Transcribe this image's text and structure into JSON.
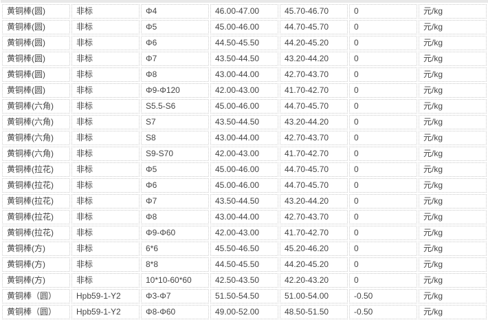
{
  "page": {
    "description": "brass rod price list table",
    "colors": {
      "background": "#ffffff",
      "border_dotted": "#c9c9c9",
      "header_strip": "#e9e9e9",
      "text": "#444444"
    }
  },
  "table": {
    "column_count": 7,
    "column_semantics": [
      "product-name",
      "standard",
      "specification",
      "price-range-1",
      "price-range-2",
      "change",
      "unit"
    ],
    "rows": [
      [
        "黄铜棒(圆)",
        "非标",
        "Φ4",
        "46.00-47.00",
        "45.70-46.70",
        "0",
        "元/kg"
      ],
      [
        "黄铜棒(圆)",
        "非标",
        "Φ5",
        "45.00-46.00",
        "44.70-45.70",
        "0",
        "元/kg"
      ],
      [
        "黄铜棒(圆)",
        "非标",
        "Φ6",
        "44.50-45.50",
        "44.20-45.20",
        "0",
        "元/kg"
      ],
      [
        "黄铜棒(圆)",
        "非标",
        "Φ7",
        "43.50-44.50",
        "43.20-44.20",
        "0",
        "元/kg"
      ],
      [
        "黄铜棒(圆)",
        "非标",
        "Φ8",
        "43.00-44.00",
        "42.70-43.70",
        "0",
        "元/kg"
      ],
      [
        "黄铜棒(圆)",
        "非标",
        "Φ9-Φ120",
        "42.00-43.00",
        "41.70-42.70",
        "0",
        "元/kg"
      ],
      [
        "黄铜棒(六角)",
        "非标",
        "S5.5-S6",
        "45.00-46.00",
        "44.70-45.70",
        "0",
        "元/kg"
      ],
      [
        "黄铜棒(六角)",
        "非标",
        "S7",
        "43.50-44.50",
        "43.20-44.20",
        "0",
        "元/kg"
      ],
      [
        "黄铜棒(六角)",
        "非标",
        "S8",
        "43.00-44.00",
        "42.70-43.70",
        "0",
        "元/kg"
      ],
      [
        "黄铜棒(六角)",
        "非标",
        "S9-S70",
        "42.00-43.00",
        "41.70-42.70",
        "0",
        "元/kg"
      ],
      [
        "黄铜棒(拉花)",
        "非标",
        "Φ5",
        "45.00-46.00",
        "44.70-45.70",
        "0",
        "元/kg"
      ],
      [
        "黄铜棒(拉花)",
        "非标",
        "Φ6",
        "45.00-46.00",
        "44.70-45.70",
        "0",
        "元/kg"
      ],
      [
        "黄铜棒(拉花)",
        "非标",
        "Φ7",
        "43.50-44.50",
        "43.20-44.20",
        "0",
        "元/kg"
      ],
      [
        "黄铜棒(拉花)",
        "非标",
        "Φ8",
        "43.00-44.00",
        "42.70-43.70",
        "0",
        "元/kg"
      ],
      [
        "黄铜棒(拉花)",
        "非标",
        "Φ9-Φ60",
        "42.00-43.00",
        "41.70-42.70",
        "0",
        "元/kg"
      ],
      [
        "黄铜棒(方)",
        "非标",
        "6*6",
        "45.50-46.50",
        "45.20-46.20",
        "0",
        "元/kg"
      ],
      [
        "黄铜棒(方)",
        "非标",
        "8*8",
        "44.50-45.50",
        "44.20-45.20",
        "0",
        "元/kg"
      ],
      [
        "黄铜棒(方)",
        "非标",
        "10*10-60*60",
        "42.50-43.50",
        "42.20-43.20",
        "0",
        "元/kg"
      ],
      [
        "黄铜棒（圆）",
        "Hpb59-1-Y2",
        "Φ3-Φ7",
        "51.50-54.50",
        "51.00-54.00",
        "-0.50",
        "元/kg"
      ],
      [
        "黄铜棒（圆）",
        "Hpb59-1-Y2",
        "Φ8-Φ60",
        "49.00-52.00",
        "48.50-51.50",
        "-0.50",
        "元/kg"
      ]
    ]
  }
}
